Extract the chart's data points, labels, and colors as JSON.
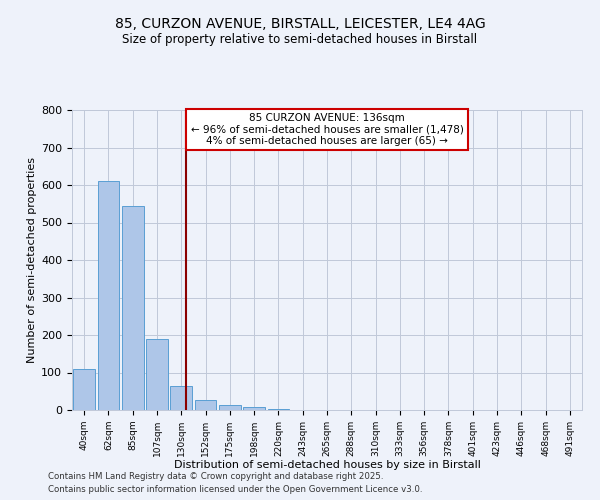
{
  "title_line1": "85, CURZON AVENUE, BIRSTALL, LEICESTER, LE4 4AG",
  "title_line2": "Size of property relative to semi-detached houses in Birstall",
  "xlabel": "Distribution of semi-detached houses by size in Birstall",
  "ylabel": "Number of semi-detached properties",
  "categories": [
    "40sqm",
    "62sqm",
    "85sqm",
    "107sqm",
    "130sqm",
    "152sqm",
    "175sqm",
    "198sqm",
    "220sqm",
    "243sqm",
    "265sqm",
    "288sqm",
    "310sqm",
    "333sqm",
    "356sqm",
    "378sqm",
    "401sqm",
    "423sqm",
    "446sqm",
    "468sqm",
    "491sqm"
  ],
  "values": [
    110,
    610,
    545,
    190,
    65,
    27,
    13,
    8,
    4,
    0,
    0,
    0,
    0,
    0,
    0,
    0,
    0,
    0,
    0,
    0,
    0
  ],
  "bar_color": "#aec6e8",
  "bar_edge_color": "#5a9fd4",
  "property_line_x": 4.18,
  "property_line_color": "#8b0000",
  "annotation_text": "85 CURZON AVENUE: 136sqm\n← 96% of semi-detached houses are smaller (1,478)\n4% of semi-detached houses are larger (65) →",
  "annotation_box_color": "#ffffff",
  "annotation_box_edge": "#cc0000",
  "footer_line1": "Contains HM Land Registry data © Crown copyright and database right 2025.",
  "footer_line2": "Contains public sector information licensed under the Open Government Licence v3.0.",
  "background_color": "#eef2fa",
  "ylim": [
    0,
    800
  ],
  "yticks": [
    0,
    100,
    200,
    300,
    400,
    500,
    600,
    700,
    800
  ]
}
